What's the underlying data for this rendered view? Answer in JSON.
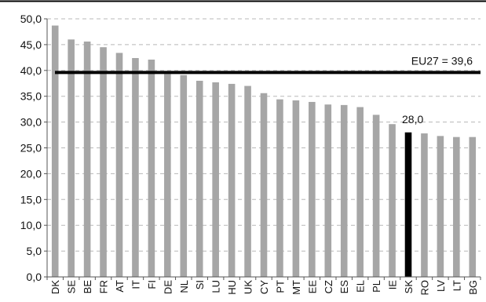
{
  "chart_data": {
    "type": "bar",
    "title": "",
    "xlabel": "",
    "ylabel": "",
    "ylim": [
      0,
      50
    ],
    "y_ticks": [
      "0,0",
      "5,0",
      "10,0",
      "15,0",
      "20,0",
      "25,0",
      "30,0",
      "35,0",
      "40,0",
      "45,0",
      "50,0"
    ],
    "categories": [
      "DK",
      "SE",
      "BE",
      "FR",
      "AT",
      "IT",
      "FI",
      "DE",
      "NL",
      "SI",
      "LU",
      "HU",
      "UK",
      "CY",
      "PT",
      "MT",
      "EE",
      "CZ",
      "ES",
      "EL",
      "PL",
      "IE",
      "SK",
      "RO",
      "LV",
      "LT",
      "BG"
    ],
    "values": [
      48.7,
      46.0,
      45.6,
      44.5,
      43.4,
      42.4,
      42.1,
      39.3,
      39.1,
      38.0,
      37.7,
      37.4,
      37.0,
      35.6,
      34.4,
      34.2,
      33.9,
      33.4,
      33.3,
      32.9,
      31.4,
      29.6,
      28.0,
      27.8,
      27.3,
      27.1,
      27.1
    ],
    "highlight": "SK",
    "highlight_label": "28,0",
    "reference_line": {
      "label": "EU27 = 39,6",
      "value": 39.6
    },
    "grid": true,
    "colors": {
      "bar": "#a6a6a6",
      "highlight": "#000000",
      "reference": "#000000",
      "grid": "#b8b8b8"
    }
  }
}
